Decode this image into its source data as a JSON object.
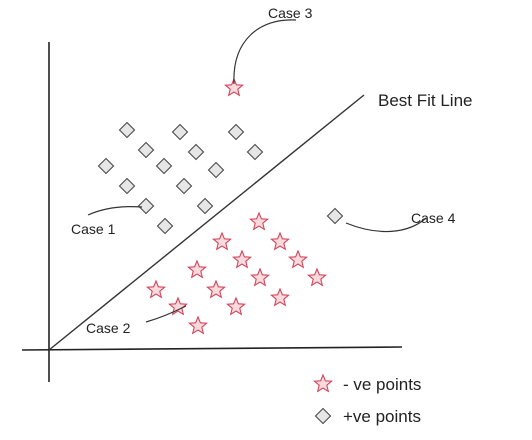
{
  "diagram": {
    "line_label": "Best Fit Line",
    "cases": {
      "case1": "Case 1",
      "case2": "Case 2",
      "case3": "Case 3",
      "case4": "Case 4"
    },
    "legend": {
      "negative": "- ve points",
      "positive": "+ve points"
    },
    "colors": {
      "star_fill": "#fadadd",
      "star_stroke": "#d2455a",
      "diamond_fill": "#e6e6e6",
      "diamond_stroke": "#4a4a4a",
      "axis": "#222222"
    }
  }
}
